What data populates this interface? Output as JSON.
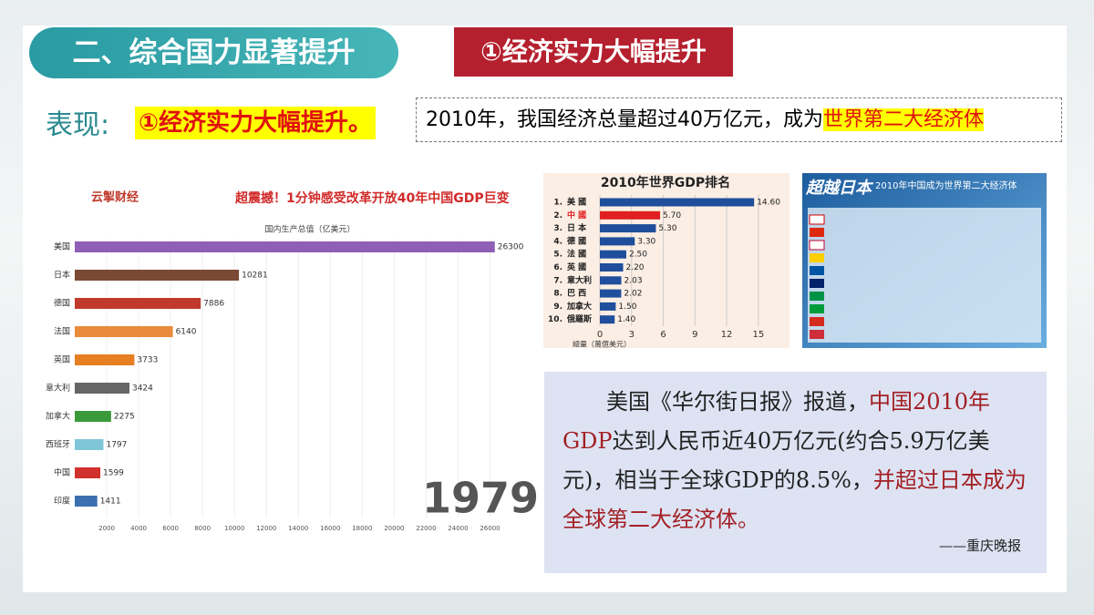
{
  "header": {
    "section_title": "二、综合国力显著提升",
    "badge": "①经济实力大幅提升"
  },
  "performance": {
    "label": "表现:",
    "highlight": "①经济实力大幅提升。",
    "statement": "2010年，我国经济总量超过40万亿元，成为",
    "statement_emphasis": "世界第二大经济体"
  },
  "race_chart": {
    "type": "bar",
    "logo": "云掣财经",
    "title": "超震撼！1分钟感受改革开放40年中国GDP巨变",
    "axis_label": "国内生产总值（亿美元）",
    "year": "1979",
    "categories": [
      "美国",
      "日本",
      "德国",
      "法国",
      "英国",
      "意大利",
      "加拿大",
      "西班牙",
      "中国",
      "印度"
    ],
    "values": [
      26300,
      10281,
      7886,
      6140,
      3733,
      3424,
      2275,
      1797,
      1599,
      1411
    ],
    "colors": [
      "#8e5fb5",
      "#7a4a35",
      "#c0392b",
      "#e98b3a",
      "#e67e22",
      "#666666",
      "#3a9a3a",
      "#7fc6d8",
      "#d0312d",
      "#3b6fb0"
    ],
    "xlim": [
      0,
      27000
    ],
    "xticks": [
      2000,
      4000,
      6000,
      8000,
      10000,
      12000,
      14000,
      16000,
      18000,
      20000,
      22000,
      24000,
      26000
    ],
    "grid": true
  },
  "gdp_chart": {
    "type": "bar",
    "title": "2010年世界GDP排名",
    "axis_label": "總量（萬億美元）",
    "ranks": [
      "1.",
      "2.",
      "3.",
      "4.",
      "5.",
      "6.",
      "7.",
      "8.",
      "9.",
      "10."
    ],
    "categories": [
      "美 國",
      "中 國",
      "日 本",
      "德 國",
      "法 國",
      "英 國",
      "意大利",
      "巴 西",
      "加拿大",
      "俄羅斯"
    ],
    "values": [
      14.6,
      5.7,
      5.3,
      3.3,
      2.5,
      2.2,
      2.03,
      2.02,
      1.5,
      1.4
    ],
    "value_labels": [
      "14.60",
      "5.70",
      "5.30",
      "3.30",
      "2.50",
      "2.20",
      "2.03",
      "2.02",
      "1.50",
      "1.40"
    ],
    "color": "#1f4e9c",
    "highlight_color": "#e02020",
    "highlight_index": 1,
    "xlim": [
      0,
      17
    ],
    "xticks": [
      0,
      3,
      6,
      9,
      12,
      15
    ],
    "grid": true
  },
  "japan_image": {
    "title": "超越日本",
    "subtitle": "2010年中国成为世界第二大经济体"
  },
  "quote": {
    "part1": "美国《华尔街日报》报道，",
    "part2": "中国2010年GDP",
    "part3": "达到人民币近40万亿元(约合5.9万亿美元)，相当于全球GDP的8.5%，",
    "part4": "并超过日本成为全球第二大经济体。",
    "source": "——重庆晚报"
  }
}
